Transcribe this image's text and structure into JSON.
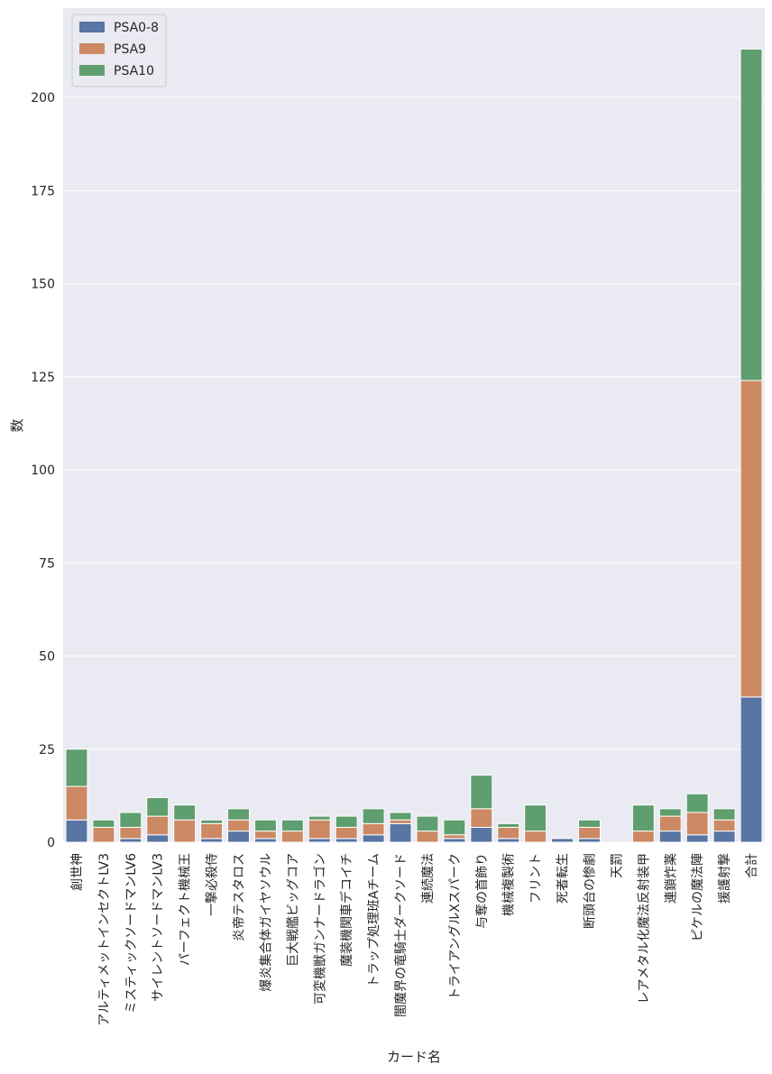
{
  "chart_data": {
    "type": "bar",
    "stacked": true,
    "title": "",
    "xlabel": "カード名",
    "ylabel": "数",
    "ylim": [
      0,
      224
    ],
    "yticks": [
      0,
      25,
      50,
      75,
      100,
      125,
      150,
      175,
      200
    ],
    "grid": true,
    "legend_position": "top-left",
    "categories": [
      "創世神",
      "アルティメットインセクトLV3",
      "ミスティックソードマンLV6",
      "サイレントソードマンLV3",
      "パーフェクト機械王",
      "一撃必殺侍",
      "炎帝テスタロス",
      "爆炎集合体ガイヤソウル",
      "巨大戦艦ビッグコア",
      "可変機獣ガンナードラゴン",
      "魔装機関車デコイチ",
      "トラップ処理班Aチーム",
      "闇魔界の竜騎士ダークソード",
      "連続魔法",
      "トライアングルXスパーク",
      "与奪の首飾り",
      "機械複製術",
      "フリント",
      "死者転生",
      "断頭台の惨劇",
      "天罰",
      "レアメタル化魔法反射装甲",
      "連鎖炸薬",
      "ピケルの魔法陣",
      "援護射撃",
      "合計"
    ],
    "series": [
      {
        "name": "PSA0-8",
        "color": "#5875a4",
        "values": [
          6,
          0,
          1,
          2,
          0,
          1,
          3,
          1,
          0,
          1,
          1,
          2,
          5,
          0,
          1,
          4,
          1,
          0,
          1,
          1,
          0,
          0,
          3,
          2,
          3,
          39
        ]
      },
      {
        "name": "PSA9",
        "color": "#cc8963",
        "values": [
          9,
          4,
          3,
          5,
          6,
          4,
          3,
          2,
          3,
          5,
          3,
          3,
          1,
          3,
          1,
          5,
          3,
          3,
          0,
          3,
          0,
          3,
          4,
          6,
          3,
          85
        ]
      },
      {
        "name": "PSA10",
        "color": "#5f9e6e",
        "values": [
          10,
          2,
          4,
          5,
          4,
          1,
          3,
          3,
          3,
          1,
          3,
          4,
          2,
          4,
          4,
          9,
          1,
          7,
          0,
          2,
          0,
          7,
          2,
          5,
          3,
          89
        ]
      }
    ]
  }
}
